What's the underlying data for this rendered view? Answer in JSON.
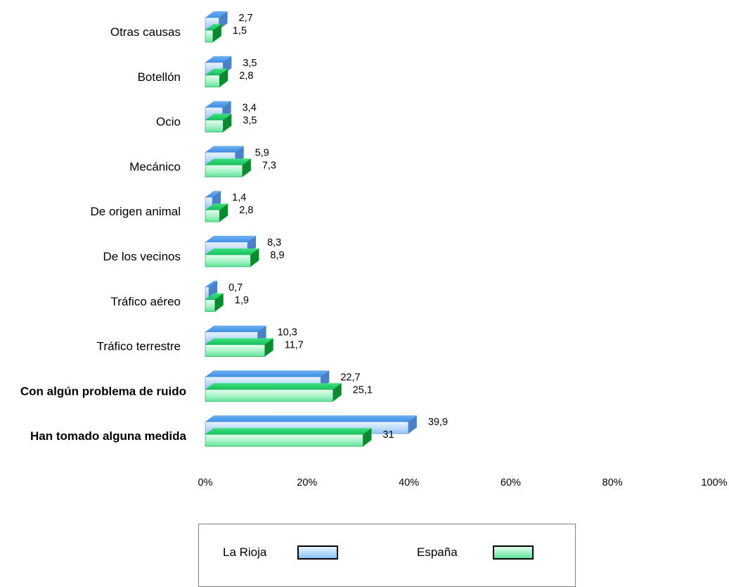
{
  "chart_data": {
    "type": "bar",
    "orientation": "horizontal",
    "three_d": true,
    "categories": [
      "Otras causas",
      "Botellón",
      "Ocio",
      "Mecánico",
      "De origen animal",
      "De los vecinos",
      "Tráfico aéreo",
      "Tráfico terrestre",
      "Con algún problema de ruido",
      "Han tomado alguna medida"
    ],
    "bold_categories": [
      "Con algún problema de ruido",
      "Han tomado alguna medida"
    ],
    "series": [
      {
        "name": "La Rioja",
        "color": "#8cc2f5",
        "values": [
          2.7,
          3.5,
          3.4,
          5.9,
          1.4,
          8.3,
          0.7,
          10.3,
          22.7,
          39.9
        ],
        "labels": [
          "2,7",
          "3,5",
          "3,4",
          "5,9",
          "1,4",
          "8,3",
          "0,7",
          "10,3",
          "22,7",
          "39,9"
        ]
      },
      {
        "name": "España",
        "color": "#5fe39a",
        "values": [
          1.5,
          2.8,
          3.5,
          7.3,
          2.8,
          8.9,
          1.9,
          11.7,
          25.1,
          31
        ],
        "labels": [
          "1,5",
          "2,8",
          "3,5",
          "7,3",
          "2,8",
          "8,9",
          "1,9",
          "11,7",
          "25,1",
          "31"
        ]
      }
    ],
    "x_ticks": [
      "0%",
      "20%",
      "40%",
      "60%",
      "80%",
      "100%"
    ],
    "xlim": [
      0,
      100
    ],
    "grid": false,
    "legend_position": "bottom"
  },
  "legend": {
    "items": [
      {
        "label": "La Rioja",
        "color": "#8cc2f5"
      },
      {
        "label": "España",
        "color": "#5fe39a"
      }
    ]
  }
}
